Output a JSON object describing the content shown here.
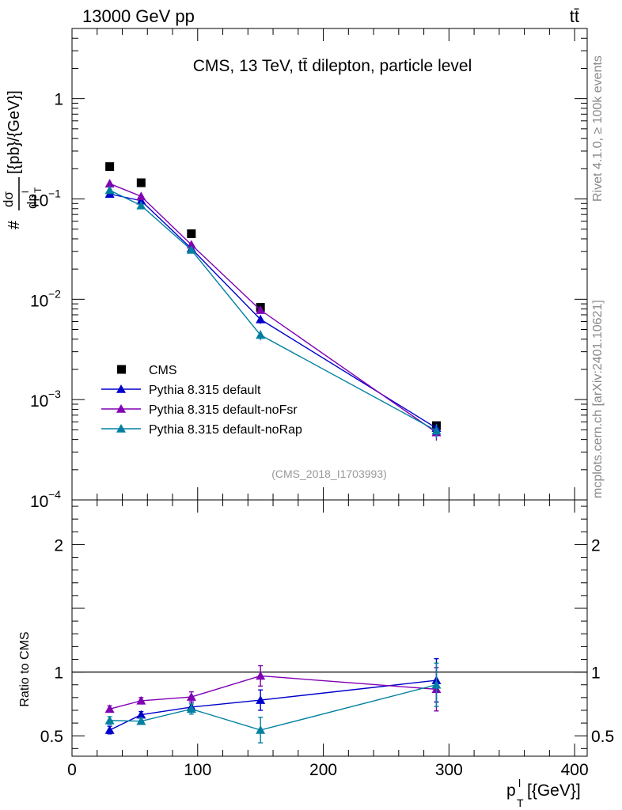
{
  "header": {
    "left_label": "13000 GeV pp",
    "right_label": "tt̄"
  },
  "side_labels": {
    "rivet": "Rivet 4.1.0, ≥ 100k events",
    "mcplots": "mcplots.cern.ch [arXiv:2401.10621]"
  },
  "colors": {
    "data": "#000000",
    "default": "#0000cc",
    "noFsr": "#8000b3",
    "noRap": "#0080a0"
  },
  "chart_data": [
    {
      "type": "line",
      "title": "CMS, 13 TeV, tt̄ dilepton, particle level",
      "analysis_id": "(CMS_2018_I1703993)",
      "xlabel": "p_T^l [{GeV}]",
      "ylabel": "# dσ/dp_T^l [{pb}/{GeV}]",
      "ylabel_parts": {
        "prefix": "#",
        "num": "dσ",
        "den": "dp",
        "sub": "T",
        "sup": "l",
        "units": "[{pb}/{GeV}]"
      },
      "yscale": "log",
      "xlim": [
        0,
        410
      ],
      "ylim": [
        0.0001,
        5
      ],
      "y_ticks": [
        {
          "value": 1,
          "label": "1",
          "base": "",
          "exp": ""
        },
        {
          "value": 0.1,
          "label": "",
          "base": "10",
          "exp": "−1"
        },
        {
          "value": 0.01,
          "label": "",
          "base": "10",
          "exp": "−2"
        },
        {
          "value": 0.001,
          "label": "",
          "base": "10",
          "exp": "−3"
        },
        {
          "value": 0.0001,
          "label": "",
          "base": "10",
          "exp": "−4"
        }
      ],
      "x": [
        30,
        55,
        95,
        150,
        290
      ],
      "series": [
        {
          "name": "CMS",
          "key": "data",
          "marker": "square",
          "values": [
            0.21,
            0.145,
            0.045,
            0.0083,
            0.00055
          ],
          "errors": [
            0.005,
            0.004,
            0.0015,
            0.0004,
            4e-05
          ]
        },
        {
          "name": "Pythia 8.315 default",
          "key": "default",
          "marker": "triangle",
          "values": [
            0.112,
            0.096,
            0.032,
            0.0063,
            0.00052
          ],
          "errors": [
            0.004,
            0.003,
            0.0012,
            0.0006,
            7e-05
          ]
        },
        {
          "name": "Pythia 8.315 default-noFsr",
          "key": "noFsr",
          "marker": "triangle",
          "values": [
            0.142,
            0.106,
            0.035,
            0.0078,
            0.00047
          ],
          "errors": [
            0.005,
            0.003,
            0.0013,
            0.0005,
            8e-05
          ]
        },
        {
          "name": "Pythia 8.315 default-noRap",
          "key": "noRap",
          "marker": "triangle",
          "values": [
            0.122,
            0.086,
            0.031,
            0.0044,
            0.00049
          ],
          "errors": [
            0.005,
            0.003,
            0.0012,
            0.0005,
            8e-05
          ]
        }
      ],
      "legend": {
        "position": "bottom-left",
        "entries": [
          "CMS",
          "Pythia 8.315 default",
          "Pythia 8.315 default-noFsr",
          "Pythia 8.315 default-noRap"
        ]
      }
    },
    {
      "type": "line",
      "title": "",
      "xlabel": "p_T^l [{GeV}]",
      "ylabel": "Ratio to CMS",
      "xlim": [
        0,
        410
      ],
      "ylim": [
        0.34,
        2.35
      ],
      "x_ticks": [
        0,
        100,
        200,
        300,
        400
      ],
      "y_ticks": [
        {
          "value": 2,
          "label": "2"
        },
        {
          "value": 1,
          "label": "1"
        },
        {
          "value": 0.5,
          "label": "0.5"
        }
      ],
      "reference_line": 1,
      "x": [
        30,
        55,
        95,
        150,
        290
      ],
      "series": [
        {
          "name": "Pythia 8.315 default",
          "key": "default",
          "values": [
            0.545,
            0.665,
            0.725,
            0.78,
            0.935
          ],
          "errors": [
            0.03,
            0.025,
            0.04,
            0.08,
            0.17
          ]
        },
        {
          "name": "Pythia 8.315 default-noFsr",
          "key": "noFsr",
          "values": [
            0.71,
            0.775,
            0.805,
            0.97,
            0.865
          ],
          "errors": [
            0.025,
            0.025,
            0.04,
            0.08,
            0.17
          ]
        },
        {
          "name": "Pythia 8.315 default-noRap",
          "key": "noRap",
          "values": [
            0.62,
            0.615,
            0.71,
            0.545,
            0.9
          ],
          "errors": [
            0.03,
            0.025,
            0.04,
            0.1,
            0.17
          ]
        }
      ]
    }
  ]
}
